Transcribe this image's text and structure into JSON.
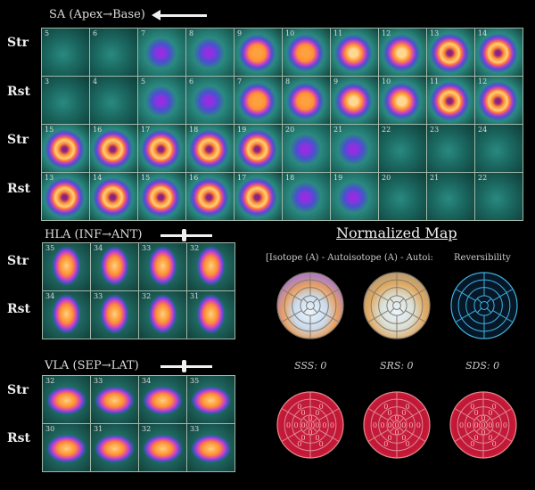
{
  "sa": {
    "title": "SA (Apex→Base)",
    "rows": [
      {
        "label": "Str",
        "slices": [
          "5",
          "6",
          "7",
          "8",
          "9",
          "10",
          "11",
          "12",
          "13",
          "14"
        ],
        "intensity": [
          0.1,
          0.15,
          0.3,
          0.45,
          0.6,
          0.7,
          0.8,
          0.85,
          0.9,
          0.95
        ],
        "ring": [
          0,
          0,
          0,
          0,
          0,
          0,
          0,
          0,
          1,
          1
        ]
      },
      {
        "label": "Rst",
        "slices": [
          "3",
          "4",
          "5",
          "6",
          "7",
          "8",
          "9",
          "10",
          "11",
          "12"
        ],
        "intensity": [
          0.1,
          0.15,
          0.3,
          0.45,
          0.6,
          0.7,
          0.8,
          0.85,
          0.9,
          0.95
        ],
        "ring": [
          0,
          0,
          0,
          0,
          0,
          0,
          0,
          0,
          1,
          1
        ]
      },
      {
        "label": "Str",
        "slices": [
          "15",
          "16",
          "17",
          "18",
          "19",
          "20",
          "21",
          "22",
          "23",
          "24"
        ],
        "intensity": [
          0.95,
          0.9,
          0.85,
          0.7,
          0.55,
          0.45,
          0.3,
          0.2,
          0.12,
          0.1
        ],
        "ring": [
          1,
          1,
          1,
          1,
          1,
          1,
          0,
          0,
          0,
          0
        ]
      },
      {
        "label": "Rst",
        "slices": [
          "13",
          "14",
          "15",
          "16",
          "17",
          "18",
          "19",
          "20",
          "21",
          "22"
        ],
        "intensity": [
          0.95,
          0.9,
          0.85,
          0.7,
          0.55,
          0.45,
          0.3,
          0.2,
          0.12,
          0.1
        ],
        "ring": [
          1,
          1,
          1,
          1,
          1,
          1,
          0,
          0,
          0,
          0
        ]
      }
    ]
  },
  "hla": {
    "title": "HLA (INF→ANT)",
    "rows": [
      {
        "label": "Str",
        "slices": [
          "35",
          "34",
          "33",
          "32"
        ]
      },
      {
        "label": "Rst",
        "slices": [
          "34",
          "33",
          "32",
          "31"
        ]
      }
    ]
  },
  "vla": {
    "title": "VLA (SEP→LAT)",
    "rows": [
      {
        "label": "Str",
        "slices": [
          "32",
          "33",
          "34",
          "35"
        ]
      },
      {
        "label": "Rst",
        "slices": [
          "30",
          "31",
          "32",
          "33"
        ]
      }
    ]
  },
  "normalized_map": {
    "title": "Normalized Map",
    "subtitle_left": "[Isotope (A) - Autoisotope (A) - Autoi:",
    "subtitle_right": "Reversibility",
    "scores": [
      "SSS: 0",
      "SRS: 0",
      "SDS: 0"
    ],
    "segment_values": [
      [
        "0",
        "0",
        "0",
        "0",
        "0",
        "0",
        "0",
        "0",
        "0",
        "0",
        "0",
        "0",
        "0",
        "0",
        "0",
        "0",
        "0"
      ],
      [
        "0",
        "0",
        "0",
        "0",
        "0",
        "0",
        "0",
        "0",
        "0",
        "0",
        "0",
        "0",
        "0",
        "0",
        "0",
        "0",
        "0"
      ],
      [
        "0",
        "0",
        "0",
        "0",
        "0",
        "0",
        "0",
        "0",
        "0",
        "0",
        "0",
        "0",
        "0",
        "0",
        "0",
        "0",
        "0"
      ]
    ]
  }
}
